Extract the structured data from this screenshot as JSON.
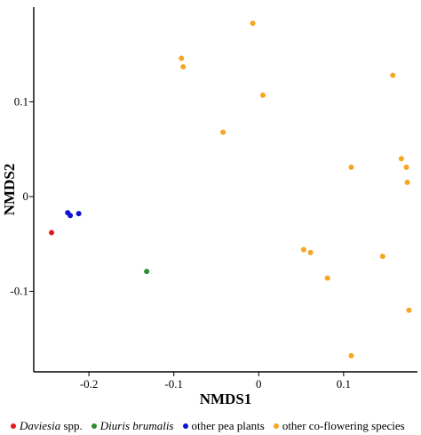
{
  "chart_data": {
    "type": "scatter",
    "xlabel": "NMDS1",
    "ylabel": "NMDS2",
    "xlim": [
      -0.265,
      0.187
    ],
    "ylim": [
      -0.185,
      0.2
    ],
    "xticks": [
      -0.2,
      -0.1,
      0,
      0.1
    ],
    "xtick_labels": [
      "-0.2",
      "-0.1",
      "0",
      "0.1"
    ],
    "yticks": [
      -0.1,
      0,
      0.1
    ],
    "ytick_labels": [
      "-0.1",
      "0",
      "0.1"
    ],
    "grid": false,
    "legend_position": "bottom",
    "series": [
      {
        "name_italic": "Daviesia",
        "name_rest": " spp.",
        "color": "#e31a1c",
        "points": [
          [
            -0.244,
            -0.038
          ]
        ]
      },
      {
        "name_italic": "Diuris brumalis",
        "name_rest": "",
        "color": "#2e8b2e",
        "points": [
          [
            -0.132,
            -0.079
          ]
        ]
      },
      {
        "name_italic": "",
        "name_rest": "other pea plants",
        "color": "#1010d8",
        "points": [
          [
            -0.225,
            -0.017
          ],
          [
            -0.222,
            -0.02
          ],
          [
            -0.212,
            -0.018
          ]
        ]
      },
      {
        "name_italic": "",
        "name_rest": "other co-flowering species",
        "color": "#f5a623",
        "points": [
          [
            -0.007,
            0.183
          ],
          [
            -0.091,
            0.146
          ],
          [
            -0.089,
            0.137
          ],
          [
            0.158,
            0.128
          ],
          [
            0.005,
            0.107
          ],
          [
            -0.042,
            0.068
          ],
          [
            0.168,
            0.04
          ],
          [
            0.109,
            0.031
          ],
          [
            0.174,
            0.031
          ],
          [
            0.175,
            0.015
          ],
          [
            0.053,
            -0.056
          ],
          [
            0.061,
            -0.059
          ],
          [
            0.146,
            -0.063
          ],
          [
            0.081,
            -0.086
          ],
          [
            0.177,
            -0.12
          ],
          [
            0.109,
            -0.168
          ]
        ]
      }
    ]
  }
}
